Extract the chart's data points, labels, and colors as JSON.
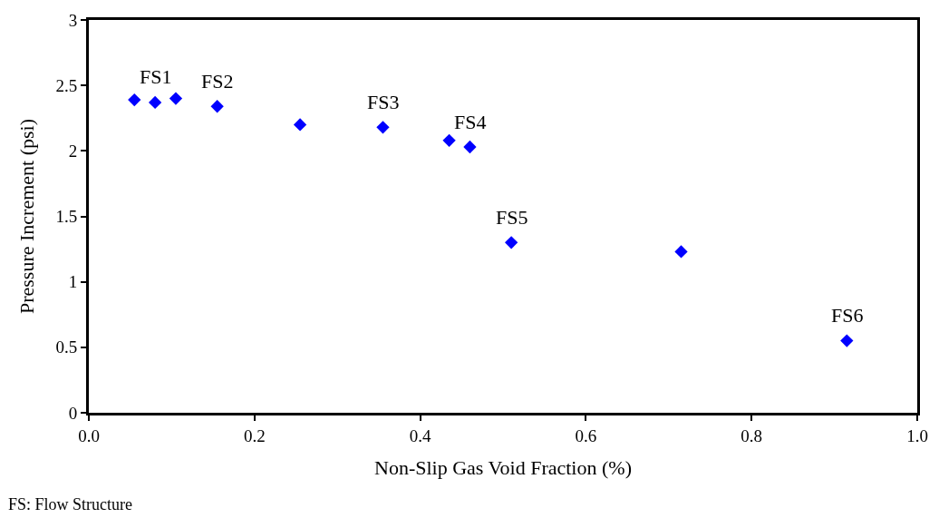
{
  "chart_data": {
    "type": "scatter",
    "xlabel": "Non-Slip Gas Void Fraction (%)",
    "ylabel": "Pressure Increment (psi)",
    "x": [
      0.055,
      0.08,
      0.105,
      0.155,
      0.255,
      0.355,
      0.435,
      0.46,
      0.51,
      0.715,
      0.915
    ],
    "series": [
      {
        "color": "#0000ff",
        "values": [
          2.39,
          2.37,
          2.4,
          2.34,
          2.2,
          2.18,
          2.08,
          2.03,
          1.3,
          1.23,
          0.55
        ]
      }
    ],
    "marker": "diamond",
    "xlim": [
      0,
      1
    ],
    "xticks": [
      {
        "value": 0,
        "label": "0.0"
      },
      0.2,
      0.4,
      0.6,
      0.8,
      {
        "value": 1,
        "label": "1.0"
      }
    ],
    "ylim": [
      0,
      3
    ],
    "yticks": [
      0,
      0.5,
      1,
      1.5,
      2,
      2.5,
      3
    ],
    "grid": false,
    "legend": false,
    "annotations": [
      {
        "text": "FS1",
        "x": 0.08,
        "y": 2.37
      },
      {
        "text": "FS2",
        "x": 0.155,
        "y": 2.34
      },
      {
        "text": "FS3",
        "x": 0.355,
        "y": 2.18
      },
      {
        "text": "FS4",
        "x": 0.46,
        "y": 2.03
      },
      {
        "text": "FS5",
        "x": 0.51,
        "y": 1.3
      },
      {
        "text": "FS6",
        "x": 0.915,
        "y": 0.55
      },
      "FS: Flow Structure"
    ]
  }
}
